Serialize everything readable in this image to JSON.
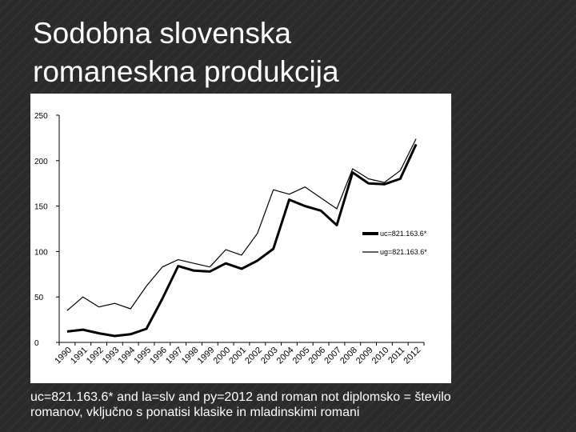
{
  "slide": {
    "title_line1": "Sodobna slovenska",
    "title_line2": "romaneskna produkcija",
    "caption_line1": "uc=821.163.6* and la=slv and py=2012 and roman not diplomsko = število",
    "caption_line2": "romanov, vključno s ponatisi klasike in mladinskimi romani"
  },
  "chart_data": {
    "type": "line",
    "title": "",
    "xlabel": "",
    "ylabel": "",
    "ylim": [
      0,
      250
    ],
    "yticks": [
      "0",
      "50",
      "100",
      "150",
      "200",
      "250"
    ],
    "categories": [
      "1990",
      "1991",
      "1992",
      "1993",
      "1994",
      "1995",
      "1996",
      "1997",
      "1998",
      "1999",
      "2000",
      "2001",
      "2002",
      "2003",
      "2004",
      "2005",
      "2006",
      "2007",
      "2008",
      "2009",
      "2010",
      "2011",
      "2012"
    ],
    "grid": false,
    "legend_position": "right",
    "series": [
      {
        "name": "uc=821.163.6*",
        "style": "thick",
        "color": "#000000",
        "values": [
          12,
          14,
          10,
          7,
          9,
          15,
          48,
          84,
          79,
          78,
          87,
          81,
          90,
          103,
          157,
          150,
          145,
          129,
          187,
          175,
          174,
          180,
          218
        ]
      },
      {
        "name": "ug=821.163.6*",
        "style": "thin",
        "color": "#000000",
        "values": [
          35,
          50,
          39,
          43,
          37,
          62,
          83,
          91,
          87,
          83,
          102,
          96,
          120,
          168,
          163,
          171,
          159,
          147,
          191,
          180,
          176,
          189,
          224
        ]
      }
    ]
  }
}
